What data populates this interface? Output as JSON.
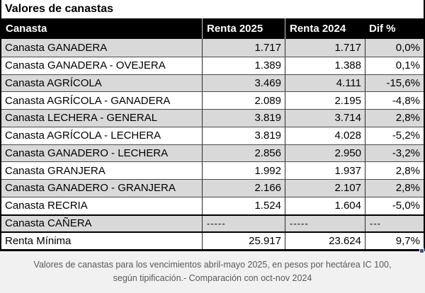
{
  "title": "Valores de canastas",
  "table": {
    "columns": {
      "canasta": "Canasta",
      "renta2025": "Renta 2025",
      "renta2024": "Renta 2024",
      "dif": "Dif %"
    },
    "rows": [
      {
        "name": "Canasta GANADERA",
        "renta2025": "1.717",
        "renta2024": "1.717",
        "dif": "0,0%"
      },
      {
        "name": "Canasta GANADERA - OVEJERA",
        "renta2025": "1.389",
        "renta2024": "1.388",
        "dif": "0,1%"
      },
      {
        "name": "Canasta AGRÍCOLA",
        "renta2025": "3.469",
        "renta2024": "4.111",
        "dif": "-15,6%"
      },
      {
        "name": "Canasta AGRÍCOLA - GANADERA",
        "renta2025": "2.089",
        "renta2024": "2.195",
        "dif": "-4,8%"
      },
      {
        "name": "Canasta LECHERA - GENERAL",
        "renta2025": "3.819",
        "renta2024": "3.714",
        "dif": "2,8%"
      },
      {
        "name": "Canasta AGRÍCOLA - LECHERA",
        "renta2025": "3.819",
        "renta2024": "4.028",
        "dif": "-5,2%"
      },
      {
        "name": "Canasta GANADERO - LECHERA",
        "renta2025": "2.856",
        "renta2024": "2.950",
        "dif": "-3,2%"
      },
      {
        "name": "Canasta GRANJERA",
        "renta2025": "1.992",
        "renta2024": "1.937",
        "dif": "2,8%"
      },
      {
        "name": "Canasta GANADERO - GRANJERA",
        "renta2025": "2.166",
        "renta2024": "2.107",
        "dif": "2,8%"
      },
      {
        "name": "Canasta RECRIA",
        "renta2025": "1.524",
        "renta2024": "1.604",
        "dif": "-5,0%"
      },
      {
        "name": "Canasta CAÑERA",
        "renta2025": "-----",
        "renta2024": "-----",
        "dif": "---"
      },
      {
        "name": "Renta Mínima",
        "renta2025": "25.917",
        "renta2024": "23.624",
        "dif": "9,7%"
      }
    ]
  },
  "footer": {
    "line1": "Valores de canastas para los vencimientos abril-mayo 2025, en pesos por hectárea IC 100,",
    "line2": "según tipificación.- Comparación con oct-nov 2024"
  },
  "colors": {
    "header_bg": "#000000",
    "header_text": "#ffffff",
    "stripe": "#d9d9d9",
    "footer_bg": "#f1f1f1",
    "footer_text": "#595959",
    "fill_handle": "#2b5797"
  }
}
